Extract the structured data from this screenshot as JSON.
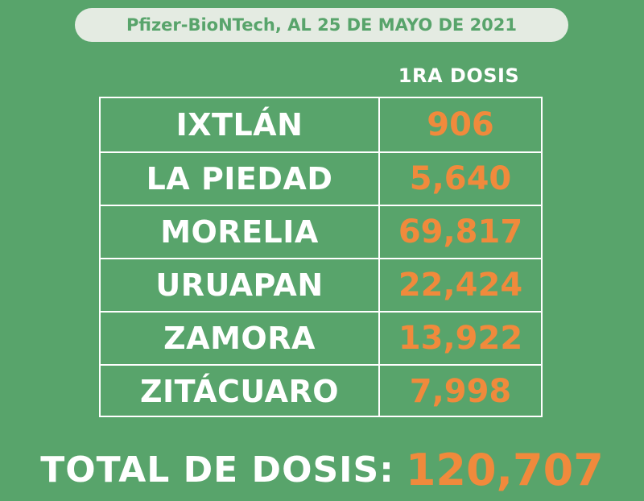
{
  "header": {
    "banner_text": "Pfizer-BioNTech, AL 25 DE MAYO DE 2021",
    "column_label": "1RA DOSIS"
  },
  "table": {
    "rows": [
      {
        "name": "IXTLÁN",
        "value": "906"
      },
      {
        "name": "LA PIEDAD",
        "value": "5,640"
      },
      {
        "name": "MORELIA",
        "value": "69,817"
      },
      {
        "name": "URUAPAN",
        "value": "22,424"
      },
      {
        "name": "ZAMORA",
        "value": "13,922"
      },
      {
        "name": "ZITÁCUARO",
        "value": "7,998"
      }
    ]
  },
  "total": {
    "label": "TOTAL DE DOSIS:",
    "value": "120,707"
  },
  "colors": {
    "background": "#58a46b",
    "banner": "#e4ebe2",
    "accent": "#f08a3c",
    "text": "#ffffff"
  }
}
